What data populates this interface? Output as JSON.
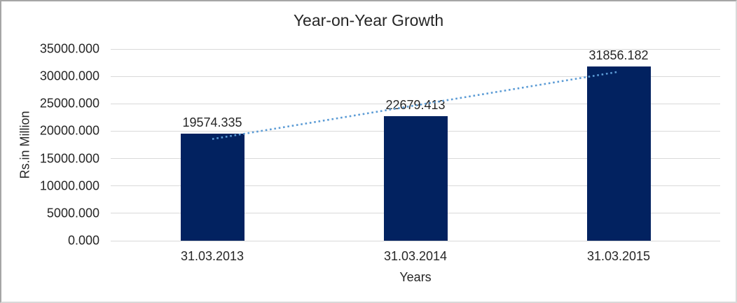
{
  "chart_data": {
    "type": "bar",
    "title": "Year-on-Year Growth",
    "xlabel": "Years",
    "ylabel": "Rs.in Million",
    "categories": [
      "31.03.2013",
      "31.03.2014",
      "31.03.2015"
    ],
    "values": [
      19574.335,
      22679.413,
      31856.182
    ],
    "data_labels": [
      "19574.335",
      "22679.413",
      "31856.182"
    ],
    "ylim": [
      0,
      35000
    ],
    "ytick_step": 5000,
    "ytick_decimals": 3,
    "grid": true,
    "legend_position": "none",
    "colors": {
      "bar": "#022260",
      "trendline": "#5B9BD5",
      "gridline": "#D9D9D9",
      "text": "#262626",
      "background": "#FFFFFF"
    },
    "trendline": {
      "type": "linear",
      "style": "dotted",
      "span": "first-to-last-category"
    }
  }
}
